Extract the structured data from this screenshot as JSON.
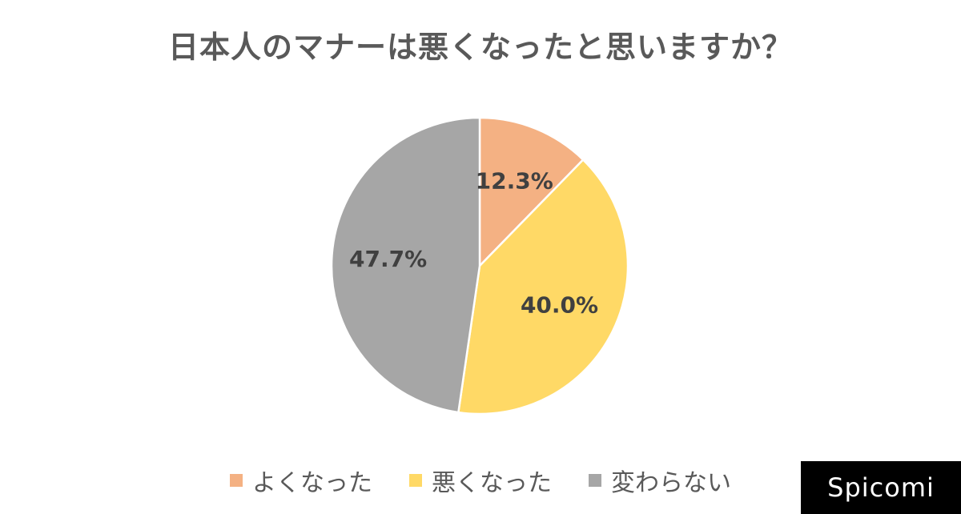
{
  "chart_data": {
    "type": "pie",
    "title": "日本人のマナーは悪くなったと思いますか？",
    "categories": [
      "よくなった",
      "悪くなった",
      "変わらない"
    ],
    "values": [
      12.3,
      40.0,
      47.7
    ],
    "labels": [
      "12.3%",
      "40.0%",
      "47.7%"
    ],
    "colors": [
      "#f4b183",
      "#ffd966",
      "#a6a6a6"
    ],
    "legend_position": "bottom",
    "start": "top",
    "direction": "clockwise"
  },
  "brand": {
    "name": "Spicomi"
  }
}
